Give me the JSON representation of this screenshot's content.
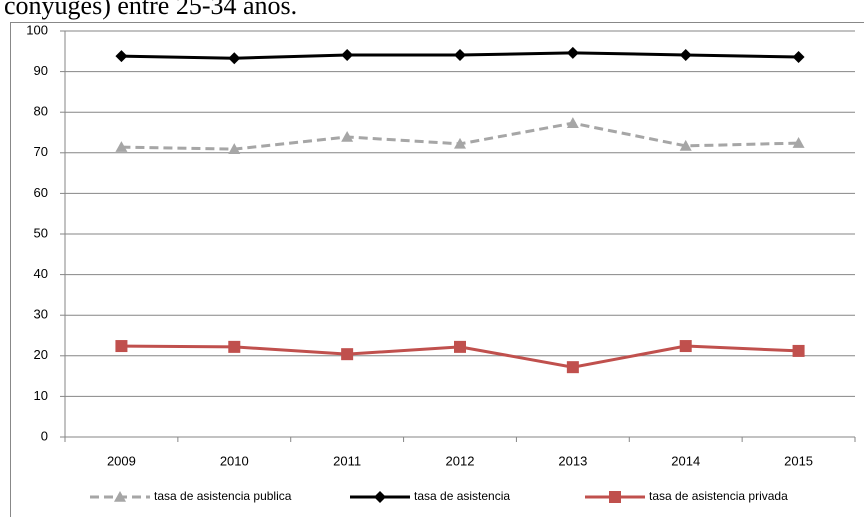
{
  "chart_data": {
    "type": "line",
    "title": "conyuges) entre 25-34 años.",
    "categories": [
      "2009",
      "2010",
      "2011",
      "2012",
      "2013",
      "2014",
      "2015"
    ],
    "series": [
      {
        "name": "tasa de asistencia publica",
        "color": "#a6a6a6",
        "marker": "triangle",
        "dash": true,
        "values": [
          71.4,
          70.9,
          73.9,
          72.2,
          77.3,
          71.7,
          72.4
        ]
      },
      {
        "name": "tasa de asistencia",
        "color": "#000000",
        "marker": "diamond",
        "dash": false,
        "values": [
          93.8,
          93.3,
          94.1,
          94.1,
          94.6,
          94.1,
          93.6
        ]
      },
      {
        "name": "tasa de asistencia privada",
        "color": "#c0504d",
        "marker": "square",
        "dash": false,
        "values": [
          22.4,
          22.2,
          20.4,
          22.2,
          17.2,
          22.4,
          21.2
        ]
      }
    ],
    "ylim": [
      0,
      100
    ],
    "yticks": [
      0,
      10,
      20,
      30,
      40,
      50,
      60,
      70,
      80,
      90,
      100
    ],
    "grid": true
  }
}
